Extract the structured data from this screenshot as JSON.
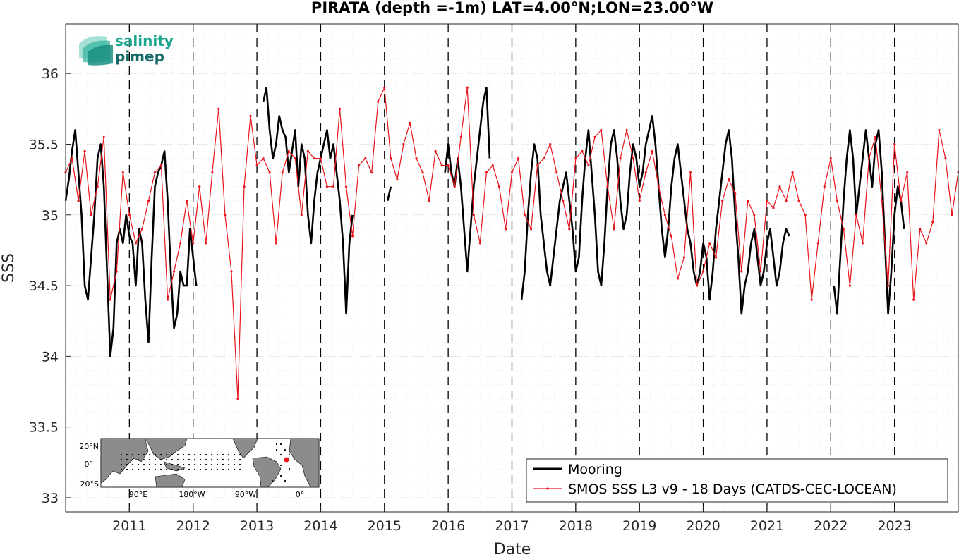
{
  "chart_data": {
    "type": "line",
    "title": "PIRATA (depth =-1m) LAT=4.00°N;LON=23.00°W",
    "xlabel": "Date",
    "ylabel": "SSS",
    "xlim": [
      2010.0,
      2024.0
    ],
    "ylim": [
      32.9,
      36.35
    ],
    "grid": true,
    "legend_position": "bottom-right",
    "x_ticks": [
      2011,
      2012,
      2013,
      2014,
      2015,
      2016,
      2017,
      2018,
      2019,
      2020,
      2021,
      2022,
      2023
    ],
    "x_tick_labels": [
      "2011",
      "2012",
      "2013",
      "2014",
      "2015",
      "2016",
      "2017",
      "2018",
      "2019",
      "2020",
      "2021",
      "2022",
      "2023"
    ],
    "y_ticks": [
      33,
      33.5,
      34,
      34.5,
      35,
      35.5,
      36
    ],
    "y_tick_labels": [
      "33",
      "33.5",
      "34",
      "34.5",
      "35",
      "35.5",
      "36"
    ],
    "year_boundaries_dashed": true,
    "series": [
      {
        "name": "Mooring",
        "color": "#000000",
        "segments": [
          {
            "x": [
              2010.0,
              2010.05,
              2010.1,
              2010.15,
              2010.2,
              2010.25,
              2010.3,
              2010.35,
              2010.4,
              2010.45,
              2010.5,
              2010.55,
              2010.6,
              2010.65,
              2010.7,
              2010.75,
              2010.8,
              2010.85,
              2010.9,
              2010.95,
              2011.0,
              2011.05,
              2011.1,
              2011.15,
              2011.2,
              2011.25,
              2011.3,
              2011.35,
              2011.4,
              2011.45,
              2011.5,
              2011.55,
              2011.6,
              2011.65,
              2011.7,
              2011.75,
              2011.8,
              2011.85,
              2011.9,
              2011.95,
              2012.0,
              2012.05
            ],
            "y": [
              35.1,
              35.25,
              35.45,
              35.6,
              35.3,
              35.0,
              34.5,
              34.4,
              34.7,
              35.0,
              35.4,
              35.5,
              35.2,
              34.6,
              34.0,
              34.2,
              34.8,
              34.9,
              34.8,
              35.0,
              34.85,
              34.8,
              34.5,
              34.9,
              34.8,
              34.4,
              34.1,
              34.7,
              35.2,
              35.3,
              35.35,
              35.45,
              35.1,
              34.6,
              34.2,
              34.3,
              34.6,
              34.5,
              34.5,
              34.9,
              34.7,
              34.5
            ]
          },
          {
            "x": [
              2013.1,
              2013.15,
              2013.2,
              2013.25,
              2013.3,
              2013.35,
              2013.4,
              2013.45,
              2013.5,
              2013.55,
              2013.6,
              2013.65,
              2013.7,
              2013.75,
              2013.8,
              2013.85,
              2013.9,
              2013.95,
              2014.0,
              2014.05,
              2014.1,
              2014.15,
              2014.2,
              2014.25,
              2014.3,
              2014.35,
              2014.4,
              2014.45,
              2014.5
            ],
            "y": [
              35.8,
              35.9,
              35.6,
              35.4,
              35.5,
              35.7,
              35.6,
              35.55,
              35.3,
              35.45,
              35.6,
              35.2,
              35.5,
              35.4,
              35.0,
              34.8,
              35.1,
              35.3,
              35.4,
              35.5,
              35.6,
              35.4,
              35.5,
              35.3,
              35.1,
              34.8,
              34.3,
              34.8,
              35.0
            ]
          },
          {
            "x": [
              2015.05,
              2015.1
            ],
            "y": [
              35.1,
              35.2
            ]
          },
          {
            "x": [
              2015.95,
              2016.0,
              2016.05,
              2016.1,
              2016.15,
              2016.2,
              2016.25,
              2016.3,
              2016.35,
              2016.4,
              2016.45,
              2016.5,
              2016.55,
              2016.6,
              2016.65
            ],
            "y": [
              35.3,
              35.5,
              35.3,
              35.2,
              35.4,
              35.2,
              34.9,
              34.6,
              34.9,
              35.2,
              35.4,
              35.6,
              35.8,
              35.9,
              35.4
            ]
          },
          {
            "x": [
              2017.15,
              2017.2,
              2017.25,
              2017.3,
              2017.35,
              2017.4,
              2017.45,
              2017.5,
              2017.55,
              2017.6,
              2017.65,
              2017.7,
              2017.75,
              2017.8,
              2017.85,
              2017.9,
              2017.95,
              2018.0,
              2018.05,
              2018.1,
              2018.15,
              2018.2,
              2018.25,
              2018.3,
              2018.35,
              2018.4,
              2018.45,
              2018.5,
              2018.55,
              2018.6,
              2018.65,
              2018.7,
              2018.75,
              2018.8,
              2018.85,
              2018.9,
              2018.95,
              2019.0,
              2019.05,
              2019.1,
              2019.15,
              2019.2,
              2019.25,
              2019.3,
              2019.35,
              2019.4,
              2019.45,
              2019.5,
              2019.55,
              2019.6,
              2019.65,
              2019.7,
              2019.75,
              2019.8,
              2019.85,
              2019.9,
              2019.95,
              2020.0,
              2020.05,
              2020.1,
              2020.15,
              2020.2,
              2020.25,
              2020.3,
              2020.35,
              2020.4,
              2020.45,
              2020.5,
              2020.55,
              2020.6,
              2020.65,
              2020.7,
              2020.75,
              2020.8,
              2020.85,
              2020.9,
              2020.95,
              2021.0,
              2021.05,
              2021.1,
              2021.15,
              2021.2,
              2021.25,
              2021.3,
              2021.35
            ],
            "y": [
              34.4,
              34.6,
              35.0,
              35.3,
              35.5,
              35.4,
              35.0,
              34.8,
              34.6,
              34.5,
              34.7,
              34.9,
              35.1,
              35.2,
              35.3,
              35.1,
              34.9,
              34.6,
              34.7,
              35.1,
              35.4,
              35.6,
              35.3,
              35.0,
              34.6,
              34.5,
              34.8,
              35.2,
              35.5,
              35.6,
              35.4,
              35.1,
              34.9,
              35.0,
              35.3,
              35.5,
              35.4,
              35.2,
              35.3,
              35.5,
              35.6,
              35.7,
              35.5,
              35.2,
              34.9,
              34.7,
              34.9,
              35.2,
              35.4,
              35.5,
              35.3,
              35.1,
              34.9,
              34.8,
              34.6,
              34.5,
              34.6,
              34.8,
              34.7,
              34.4,
              34.6,
              34.9,
              35.1,
              35.3,
              35.5,
              35.6,
              35.4,
              35.0,
              34.7,
              34.3,
              34.5,
              34.6,
              34.8,
              34.9,
              34.7,
              34.5,
              34.6,
              34.8,
              34.9,
              34.7,
              34.5,
              34.6,
              34.8,
              34.9,
              34.85
            ]
          },
          {
            "x": [
              2022.05,
              2022.1,
              2022.15,
              2022.2,
              2022.25,
              2022.3,
              2022.35,
              2022.4,
              2022.45,
              2022.5,
              2022.55,
              2022.6,
              2022.65,
              2022.7,
              2022.75,
              2022.8,
              2022.85,
              2022.9,
              2022.95,
              2023.0,
              2023.05,
              2023.1,
              2023.15
            ],
            "y": [
              34.5,
              34.3,
              34.7,
              35.1,
              35.4,
              35.6,
              35.4,
              35.0,
              35.2,
              35.4,
              35.6,
              35.4,
              35.2,
              35.5,
              35.6,
              35.3,
              34.8,
              34.3,
              34.6,
              35.0,
              35.2,
              35.1,
              34.9
            ]
          }
        ]
      },
      {
        "name": "SMOS SSS L3 v9 - 18 Days (CATDS-CEC-LOCEAN)",
        "color": "#e8141a",
        "x": [
          2010.0,
          2010.1,
          2010.2,
          2010.3,
          2010.4,
          2010.5,
          2010.6,
          2010.7,
          2010.8,
          2010.9,
          2011.0,
          2011.1,
          2011.2,
          2011.3,
          2011.4,
          2011.5,
          2011.6,
          2011.7,
          2011.8,
          2011.9,
          2012.0,
          2012.1,
          2012.2,
          2012.3,
          2012.4,
          2012.5,
          2012.6,
          2012.7,
          2012.8,
          2012.9,
          2013.0,
          2013.1,
          2013.2,
          2013.3,
          2013.4,
          2013.5,
          2013.6,
          2013.7,
          2013.8,
          2013.9,
          2014.0,
          2014.1,
          2014.2,
          2014.3,
          2014.4,
          2014.5,
          2014.6,
          2014.7,
          2014.8,
          2014.9,
          2015.0,
          2015.1,
          2015.2,
          2015.3,
          2015.4,
          2015.5,
          2015.6,
          2015.7,
          2015.8,
          2015.9,
          2016.0,
          2016.1,
          2016.2,
          2016.3,
          2016.4,
          2016.5,
          2016.6,
          2016.7,
          2016.8,
          2016.9,
          2017.0,
          2017.1,
          2017.2,
          2017.3,
          2017.4,
          2017.5,
          2017.6,
          2017.7,
          2017.8,
          2017.9,
          2018.0,
          2018.1,
          2018.2,
          2018.3,
          2018.4,
          2018.5,
          2018.6,
          2018.7,
          2018.8,
          2018.9,
          2019.0,
          2019.1,
          2019.2,
          2019.3,
          2019.4,
          2019.5,
          2019.6,
          2019.7,
          2019.8,
          2019.9,
          2020.0,
          2020.1,
          2020.2,
          2020.3,
          2020.4,
          2020.5,
          2020.6,
          2020.7,
          2020.8,
          2020.9,
          2021.0,
          2021.1,
          2021.2,
          2021.3,
          2021.4,
          2021.5,
          2021.6,
          2021.7,
          2021.8,
          2021.9,
          2022.0,
          2022.1,
          2022.2,
          2022.3,
          2022.4,
          2022.5,
          2022.6,
          2022.7,
          2022.8,
          2022.9,
          2023.0,
          2023.1,
          2023.2,
          2023.3,
          2023.4,
          2023.5,
          2023.6,
          2023.7,
          2023.8,
          2023.9,
          2024.0
        ],
        "y": [
          35.3,
          35.4,
          35.1,
          35.45,
          35.0,
          35.2,
          35.55,
          34.4,
          34.6,
          35.3,
          35.0,
          34.8,
          34.9,
          35.1,
          35.3,
          35.35,
          34.4,
          34.6,
          34.8,
          35.1,
          34.8,
          35.2,
          34.8,
          35.3,
          35.75,
          35.0,
          34.6,
          33.7,
          35.2,
          35.7,
          35.35,
          35.4,
          35.3,
          34.8,
          35.3,
          35.45,
          35.4,
          35.0,
          35.45,
          35.4,
          35.4,
          35.2,
          35.2,
          35.75,
          35.2,
          34.85,
          35.35,
          35.4,
          35.3,
          35.8,
          35.9,
          35.4,
          35.25,
          35.5,
          35.65,
          35.4,
          35.3,
          35.1,
          35.45,
          35.35,
          35.35,
          35.2,
          35.55,
          35.9,
          35.0,
          34.8,
          35.3,
          35.35,
          35.2,
          34.9,
          35.3,
          35.4,
          35.0,
          34.9,
          35.35,
          35.4,
          35.5,
          35.3,
          35.1,
          34.9,
          35.4,
          35.45,
          35.35,
          35.55,
          35.6,
          35.2,
          34.9,
          35.4,
          35.6,
          35.4,
          35.1,
          35.3,
          35.45,
          35.2,
          35.0,
          34.85,
          34.55,
          34.7,
          35.3,
          34.5,
          34.6,
          34.8,
          34.7,
          35.1,
          35.25,
          35.15,
          34.6,
          35.1,
          35.0,
          34.6,
          35.1,
          35.05,
          35.2,
          35.1,
          35.3,
          35.1,
          35.0,
          34.4,
          34.8,
          35.2,
          35.4,
          35.1,
          34.9,
          34.5,
          35.0,
          34.8,
          35.4,
          35.55,
          35.1,
          34.5,
          35.5,
          35.1,
          35.3,
          34.4,
          34.9,
          34.8,
          34.95,
          35.6,
          35.4,
          35.0,
          35.3
        ]
      }
    ]
  },
  "legend": {
    "mooring_label": "Mooring",
    "smos_label": "SMOS SSS L3 v9 - 18 Days (CATDS-CEC-LOCEAN)"
  },
  "logo": {
    "line1": "salinity",
    "line2": "pimep",
    "colors": [
      "#1aa58f",
      "#176a6a"
    ]
  },
  "inset_map": {
    "lat_labels": [
      "20°N",
      "0°",
      "20°S"
    ],
    "lon_labels": [
      "90°E",
      "180°W",
      "90°W",
      "0°"
    ],
    "marker_color": "#e8141a"
  }
}
